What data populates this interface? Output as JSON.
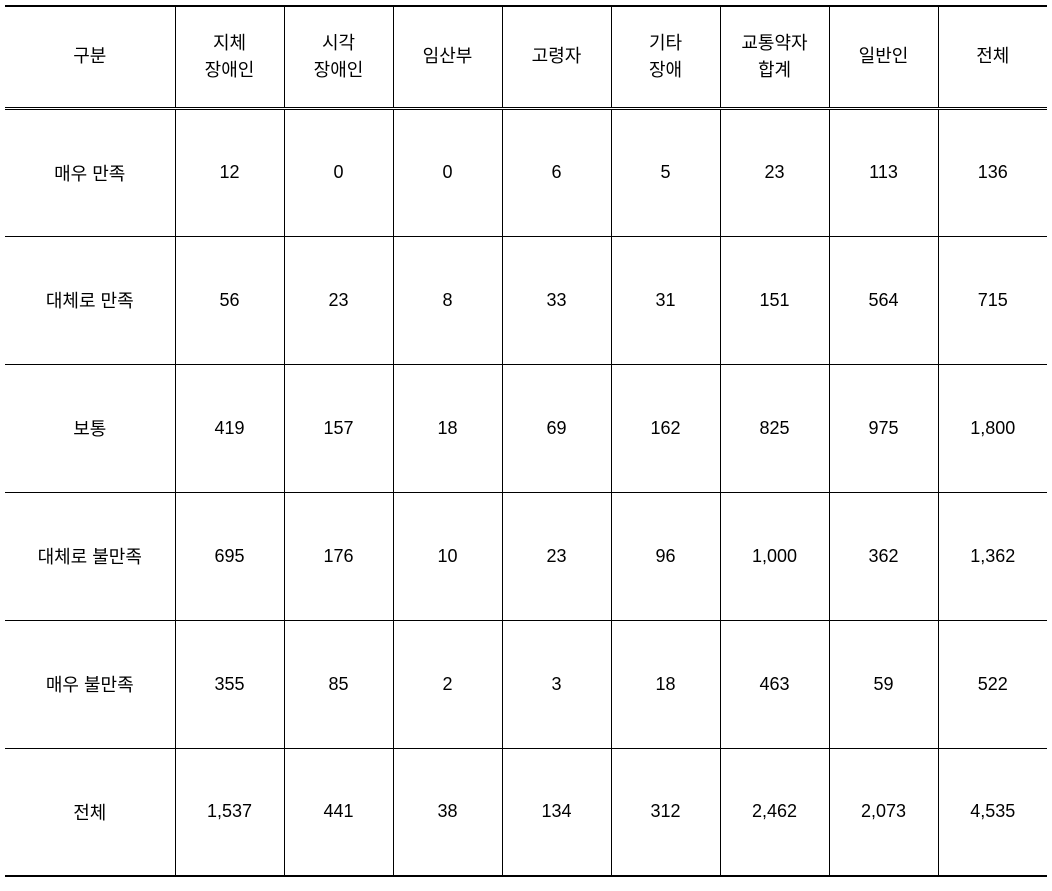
{
  "table": {
    "columns": [
      {
        "label_line1": "구분",
        "label_line2": "",
        "width_class": "col-label"
      },
      {
        "label_line1": "지체",
        "label_line2": "장애인",
        "width_class": "col-data"
      },
      {
        "label_line1": "시각",
        "label_line2": "장애인",
        "width_class": "col-data"
      },
      {
        "label_line1": "임산부",
        "label_line2": "",
        "width_class": "col-data"
      },
      {
        "label_line1": "고령자",
        "label_line2": "",
        "width_class": "col-data"
      },
      {
        "label_line1": "기타",
        "label_line2": "장애",
        "width_class": "col-data"
      },
      {
        "label_line1": "교통약자",
        "label_line2": "합계",
        "width_class": "col-data"
      },
      {
        "label_line1": "일반인",
        "label_line2": "",
        "width_class": "col-data"
      },
      {
        "label_line1": "전체",
        "label_line2": "",
        "width_class": "col-data"
      }
    ],
    "rows": [
      {
        "label": "매우 만족",
        "cells": [
          "12",
          "0",
          "0",
          "6",
          "5",
          "23",
          "113",
          "136"
        ]
      },
      {
        "label": "대체로 만족",
        "cells": [
          "56",
          "23",
          "8",
          "33",
          "31",
          "151",
          "564",
          "715"
        ]
      },
      {
        "label": "보통",
        "cells": [
          "419",
          "157",
          "18",
          "69",
          "162",
          "825",
          "975",
          "1,800"
        ]
      },
      {
        "label": "대체로 불만족",
        "cells": [
          "695",
          "176",
          "10",
          "23",
          "96",
          "1,000",
          "362",
          "1,362"
        ]
      },
      {
        "label": "매우 불만족",
        "cells": [
          "355",
          "85",
          "2",
          "3",
          "18",
          "463",
          "59",
          "522"
        ]
      },
      {
        "label": "전체",
        "cells": [
          "1,537",
          "441",
          "38",
          "134",
          "312",
          "2,462",
          "2,073",
          "4,535"
        ]
      }
    ]
  }
}
